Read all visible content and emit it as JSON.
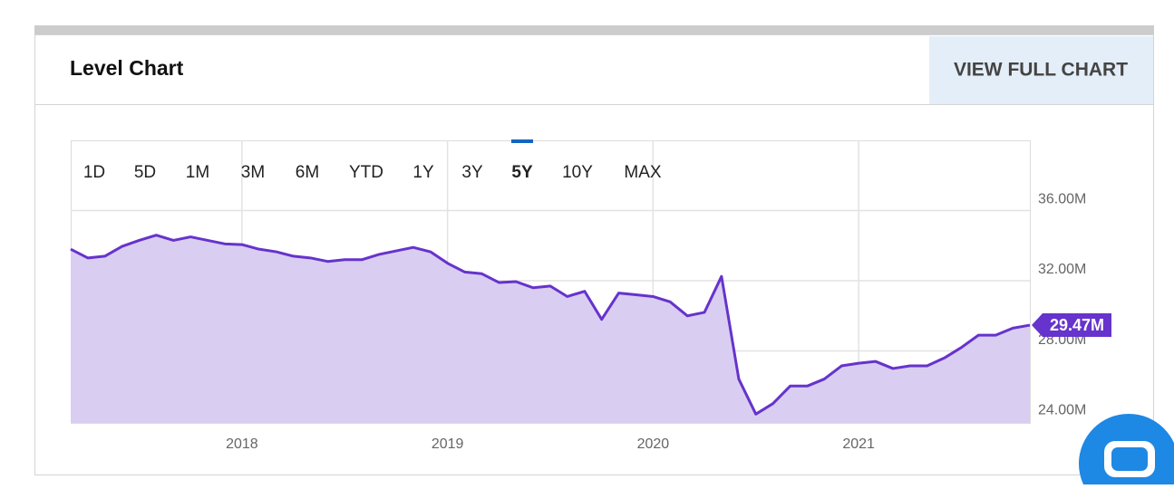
{
  "header": {
    "title": "Level Chart",
    "button": "VIEW FULL CHART"
  },
  "ranges": [
    "1D",
    "5D",
    "1M",
    "3M",
    "6M",
    "YTD",
    "1Y",
    "3Y",
    "5Y",
    "10Y",
    "MAX"
  ],
  "selected_range": "5Y",
  "chart_data": {
    "type": "area",
    "x": [
      2017.167,
      2017.25,
      2017.333,
      2017.417,
      2017.5,
      2017.583,
      2017.667,
      2017.75,
      2017.833,
      2017.917,
      2018.0,
      2018.083,
      2018.167,
      2018.25,
      2018.333,
      2018.417,
      2018.5,
      2018.583,
      2018.667,
      2018.75,
      2018.833,
      2018.917,
      2019.0,
      2019.083,
      2019.167,
      2019.25,
      2019.333,
      2019.417,
      2019.5,
      2019.583,
      2019.667,
      2019.75,
      2019.833,
      2019.917,
      2020.0,
      2020.083,
      2020.167,
      2020.25,
      2020.333,
      2020.417,
      2020.5,
      2020.583,
      2020.667,
      2020.75,
      2020.833,
      2020.917,
      2021.0,
      2021.083,
      2021.167,
      2021.25,
      2021.333,
      2021.417,
      2021.5,
      2021.583,
      2021.667,
      2021.75,
      2021.833
    ],
    "series": [
      {
        "name": "Level",
        "color": "#6633cc",
        "fill": "#d9cef1",
        "values": [
          33.8,
          33.3,
          33.4,
          33.96,
          34.3,
          34.6,
          34.3,
          34.5,
          34.3,
          34.1,
          34.06,
          33.8,
          33.65,
          33.4,
          33.3,
          33.1,
          33.2,
          33.2,
          33.5,
          33.7,
          33.9,
          33.65,
          33.0,
          32.5,
          32.4,
          31.9,
          31.95,
          31.6,
          31.7,
          31.1,
          31.4,
          29.8,
          31.3,
          31.2,
          31.1,
          30.8,
          30.0,
          30.2,
          32.25,
          26.4,
          24.4,
          25.0,
          26.0,
          26.0,
          26.4,
          27.15,
          27.3,
          27.4,
          27.0,
          27.15,
          27.15,
          27.6,
          28.2,
          28.9,
          28.9,
          29.3,
          29.47
        ]
      }
    ],
    "current_label": "29.47M",
    "xlim": [
      2017.167,
      2021.833
    ],
    "xticks": [
      2018,
      2019,
      2020,
      2021
    ],
    "ylim": [
      23.9,
      40
    ],
    "yticks": [
      {
        "value": 24,
        "label": "24.00M"
      },
      {
        "value": 28,
        "label": "28.00M"
      },
      {
        "value": 32,
        "label": "32.00M"
      },
      {
        "value": 36,
        "label": "36.00M"
      }
    ],
    "grid": true
  }
}
